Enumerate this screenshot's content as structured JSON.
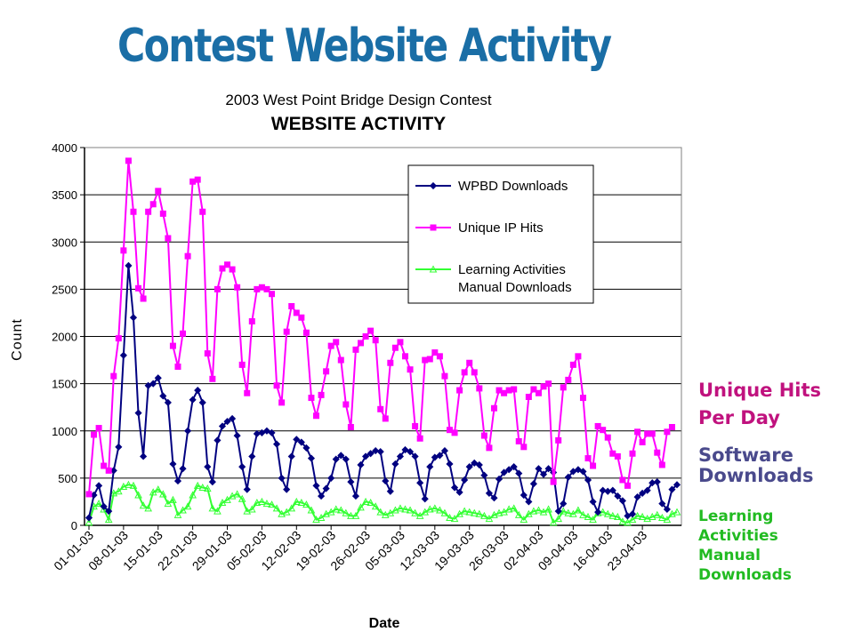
{
  "page": {
    "title": "Contest Website Activity"
  },
  "side_labels": {
    "unique_l1": "Unique Hits",
    "unique_l2": "Per Day",
    "software_l1": "Software",
    "software_l2": "Downloads",
    "learning_l1": "Learning",
    "learning_l2": "Activities",
    "learning_l3": "Manual",
    "learning_l4": "Downloads"
  },
  "colors": {
    "title": "#1a6ea6",
    "wpbd": "#000080",
    "unique": "#ff00ff",
    "learning": "#33ff33",
    "unique_label": "#c0127e",
    "software_label": "#4a4a8c",
    "learning_label": "#22bb22"
  },
  "chart_data": {
    "type": "line",
    "subtitle": "2003 West Point Bridge Design Contest",
    "title": "WEBSITE ACTIVITY",
    "xlabel": "Date",
    "ylabel": "Count",
    "ylim": [
      0,
      4000
    ],
    "yticks": [
      0,
      500,
      1000,
      1500,
      2000,
      2500,
      3000,
      3500,
      4000
    ],
    "x_start": "2003-01-01",
    "x_tick_labels": [
      "01-01-03",
      "08-01-03",
      "15-01-03",
      "22-01-03",
      "29-01-03",
      "05-02-03",
      "12-02-03",
      "19-02-03",
      "26-02-03",
      "05-03-03",
      "12-03-03",
      "19-03-03",
      "26-03-03",
      "02-04-03",
      "09-04-03",
      "16-04-03",
      "23-04-03"
    ],
    "x_tick_days": [
      0,
      7,
      14,
      21,
      28,
      35,
      42,
      49,
      56,
      63,
      70,
      77,
      84,
      91,
      98,
      105,
      112
    ],
    "legend_position": "top-right",
    "grid": "horizontal",
    "series": [
      {
        "name": "WPBD Downloads",
        "color": "#000080",
        "marker": "diamond",
        "values": [
          80,
          320,
          420,
          200,
          150,
          580,
          830,
          1800,
          2750,
          2200,
          1190,
          730,
          1480,
          1500,
          1560,
          1370,
          1300,
          650,
          470,
          600,
          1000,
          1330,
          1430,
          1300,
          620,
          460,
          900,
          1050,
          1100,
          1130,
          950,
          620,
          380,
          730,
          970,
          980,
          1000,
          980,
          860,
          500,
          380,
          730,
          910,
          880,
          820,
          710,
          420,
          310,
          390,
          500,
          700,
          740,
          700,
          460,
          310,
          640,
          730,
          760,
          790,
          780,
          470,
          360,
          650,
          730,
          800,
          780,
          730,
          450,
          280,
          620,
          720,
          740,
          790,
          650,
          400,
          350,
          480,
          620,
          660,
          640,
          530,
          340,
          290,
          490,
          560,
          590,
          620,
          550,
          320,
          250,
          440,
          600,
          540,
          600,
          560,
          150,
          230,
          510,
          570,
          590,
          570,
          480,
          250,
          140,
          370,
          360,
          370,
          310,
          260,
          100,
          120,
          300,
          340,
          370,
          450,
          460,
          230,
          170,
          380,
          430
        ]
      },
      {
        "name": "Unique IP Hits",
        "color": "#ff00ff",
        "marker": "square",
        "values": [
          330,
          960,
          1030,
          630,
          580,
          1580,
          1980,
          2910,
          3860,
          3320,
          2510,
          2400,
          3320,
          3400,
          3540,
          3300,
          3040,
          1900,
          1680,
          2030,
          2850,
          3640,
          3660,
          3320,
          1820,
          1550,
          2500,
          2720,
          2760,
          2710,
          2520,
          1700,
          1400,
          2160,
          2500,
          2520,
          2500,
          2450,
          1480,
          1300,
          2050,
          2320,
          2250,
          2200,
          2040,
          1350,
          1160,
          1380,
          1630,
          1900,
          1940,
          1750,
          1280,
          1040,
          1860,
          1930,
          2000,
          2060,
          1960,
          1230,
          1130,
          1720,
          1880,
          1940,
          1790,
          1650,
          1050,
          920,
          1750,
          1760,
          1830,
          1790,
          1580,
          1010,
          980,
          1430,
          1620,
          1720,
          1620,
          1450,
          950,
          820,
          1240,
          1430,
          1400,
          1430,
          1440,
          890,
          830,
          1360,
          1440,
          1400,
          1470,
          1500,
          460,
          900,
          1460,
          1540,
          1700,
          1790,
          1350,
          710,
          630,
          1050,
          1010,
          930,
          760,
          730,
          480,
          420,
          760,
          990,
          880,
          970,
          970,
          770,
          640,
          990,
          1040
        ]
      },
      {
        "name": "Learning Activities Manual Downloads",
        "legend_lines": [
          "Learning Activities",
          "Manual Downloads"
        ],
        "color": "#33ff33",
        "marker": "triangle",
        "values": [
          30,
          200,
          230,
          170,
          60,
          340,
          360,
          410,
          430,
          420,
          320,
          210,
          180,
          350,
          380,
          330,
          230,
          270,
          110,
          160,
          200,
          320,
          420,
          400,
          390,
          180,
          150,
          240,
          270,
          310,
          330,
          280,
          150,
          170,
          240,
          250,
          230,
          220,
          180,
          120,
          140,
          180,
          250,
          240,
          220,
          160,
          60,
          80,
          120,
          140,
          170,
          160,
          130,
          100,
          100,
          190,
          250,
          240,
          200,
          140,
          110,
          130,
          160,
          180,
          170,
          160,
          130,
          100,
          140,
          170,
          180,
          160,
          130,
          80,
          70,
          120,
          150,
          140,
          130,
          120,
          100,
          70,
          110,
          130,
          140,
          170,
          180,
          110,
          60,
          120,
          150,
          160,
          140,
          170,
          30,
          70,
          150,
          130,
          120,
          160,
          110,
          90,
          60,
          130,
          140,
          120,
          100,
          90,
          40,
          30,
          60,
          100,
          90,
          70,
          90,
          110,
          80,
          60,
          120,
          140
        ]
      }
    ]
  }
}
